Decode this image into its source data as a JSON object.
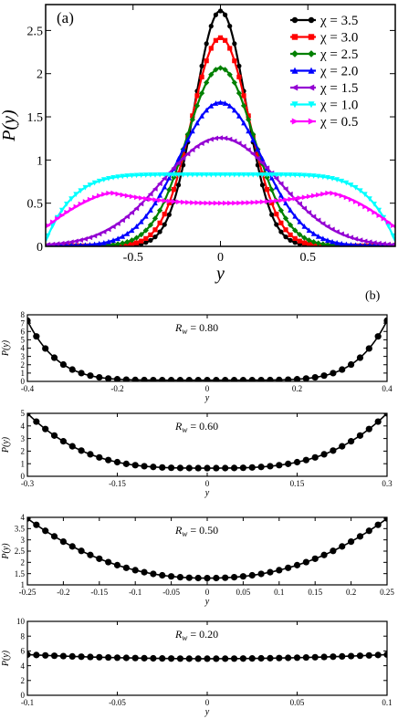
{
  "chart_data": [
    {
      "panel_label": "(a)",
      "type": "line",
      "xlabel": "y",
      "ylabel": "P(y)",
      "xlim": [
        -1.0,
        1.0
      ],
      "ylim": [
        0.0,
        2.8
      ],
      "xticks": [
        -0.5,
        0,
        0.5
      ],
      "xtick_labels": [
        "-0.5",
        "0",
        "0.5"
      ],
      "yticks": [
        0,
        0.5,
        1,
        1.5,
        2,
        2.5
      ],
      "ytick_labels": [
        "0",
        "0.5",
        "1",
        "1.5",
        "2",
        "2.5"
      ],
      "legend_position": "top-right",
      "series": [
        {
          "name": "χ = 3.5",
          "color": "#000000",
          "marker": "circle",
          "model": "gauss",
          "peak": 2.72,
          "sigma": 0.146
        },
        {
          "name": "χ = 3.0",
          "color": "#ff0000",
          "marker": "square",
          "model": "gauss",
          "peak": 2.41,
          "sigma": 0.165
        },
        {
          "name": "χ = 2.5",
          "color": "#008000",
          "marker": "diamond",
          "model": "gauss",
          "peak": 2.06,
          "sigma": 0.193
        },
        {
          "name": "χ = 2.0",
          "color": "#0000ff",
          "marker": "triangle-up",
          "model": "gauss",
          "peak": 1.66,
          "sigma": 0.24
        },
        {
          "name": "χ = 1.5",
          "color": "#9400d3",
          "marker": "triangle-left",
          "model": "gauss",
          "peak": 1.25,
          "sigma": 0.33
        },
        {
          "name": "χ = 1.0",
          "color": "#00ffff",
          "marker": "triangle-down",
          "model": "flat",
          "center": 0.83,
          "edge": 0.06
        },
        {
          "name": "χ = 0.5",
          "color": "#ff00ff",
          "marker": "triangle-right",
          "model": "bimodal",
          "center": 0.5,
          "hump": 0.62,
          "edge": 0.22
        }
      ]
    },
    {
      "panel_label": "(b)",
      "type": "line",
      "annotation": "R_w = 0.80",
      "xlabel": "y",
      "ylabel": "P(y)",
      "xlim": [
        -0.4,
        0.4
      ],
      "ylim": [
        0,
        8
      ],
      "xticks": [
        -0.4,
        -0.2,
        0,
        0.2,
        0.4
      ],
      "xtick_labels": [
        "-0.4",
        "-0.2",
        "0",
        "0.2",
        "0.4"
      ],
      "yticks": [
        0,
        1,
        2,
        3,
        4,
        5,
        6,
        7,
        8
      ],
      "ytick_labels": [
        "0",
        "1",
        "2",
        "3",
        "4",
        "5",
        "6",
        "7",
        "8"
      ],
      "series": [
        {
          "color": "#000000",
          "marker": "circle",
          "model": "arcsine",
          "half_width": 0.4,
          "min": 0.15,
          "max": 7.3,
          "power": 6
        }
      ]
    },
    {
      "type": "line",
      "annotation": "R_w = 0.60",
      "xlabel": "y",
      "ylabel": "P(y)",
      "xlim": [
        -0.3,
        0.3
      ],
      "ylim": [
        0,
        5
      ],
      "xticks": [
        -0.3,
        -0.15,
        0,
        0.15,
        0.3
      ],
      "xtick_labels": [
        "-0.3",
        "-0.15",
        "0",
        "0.15",
        "0.3"
      ],
      "yticks": [
        0,
        1,
        2,
        3,
        4,
        5
      ],
      "ytick_labels": [
        "0",
        "1",
        "2",
        "3",
        "4",
        "5"
      ],
      "series": [
        {
          "color": "#000000",
          "marker": "circle",
          "model": "arcsine",
          "half_width": 0.3,
          "min": 0.65,
          "max": 5.0,
          "power": 3.2
        }
      ]
    },
    {
      "type": "line",
      "annotation": "R_w = 0.50",
      "xlabel": "y",
      "ylabel": "P(y)",
      "xlim": [
        -0.25,
        0.25
      ],
      "ylim": [
        1,
        4
      ],
      "xticks": [
        -0.25,
        -0.2,
        -0.15,
        -0.1,
        -0.05,
        0,
        0.05,
        0.1,
        0.15,
        0.2,
        0.25
      ],
      "xtick_labels": [
        "-0.25",
        "-0.2",
        "-0.15",
        "-0.1",
        "-0.05",
        "0",
        "0.05",
        "0.1",
        "0.15",
        "0.2",
        "0.25"
      ],
      "yticks": [
        1,
        1.5,
        2,
        2.5,
        3,
        3.5,
        4
      ],
      "ytick_labels": [
        "1",
        "1.5",
        "2",
        "2.5",
        "3",
        "3.5",
        "4"
      ],
      "series": [
        {
          "color": "#000000",
          "marker": "circle",
          "model": "arcsine",
          "half_width": 0.25,
          "min": 1.3,
          "max": 3.95,
          "power": 2.2
        }
      ]
    },
    {
      "type": "line",
      "annotation": "R_w = 0.20",
      "xlabel": "y",
      "ylabel": "P(y)",
      "xlim": [
        -0.1,
        0.1
      ],
      "ylim": [
        0,
        10
      ],
      "xticks": [
        -0.1,
        -0.05,
        0,
        0.05,
        0.1
      ],
      "xtick_labels": [
        "-0.1",
        "-0.05",
        "0",
        "0.05",
        "0.1"
      ],
      "yticks": [
        0,
        2,
        4,
        6,
        8,
        10
      ],
      "ytick_labels": [
        "0",
        "2",
        "4",
        "6",
        "8",
        "10"
      ],
      "series": [
        {
          "color": "#000000",
          "marker": "circle",
          "model": "arcsine",
          "half_width": 0.1,
          "min": 4.95,
          "max": 5.5,
          "power": 2
        }
      ]
    }
  ]
}
